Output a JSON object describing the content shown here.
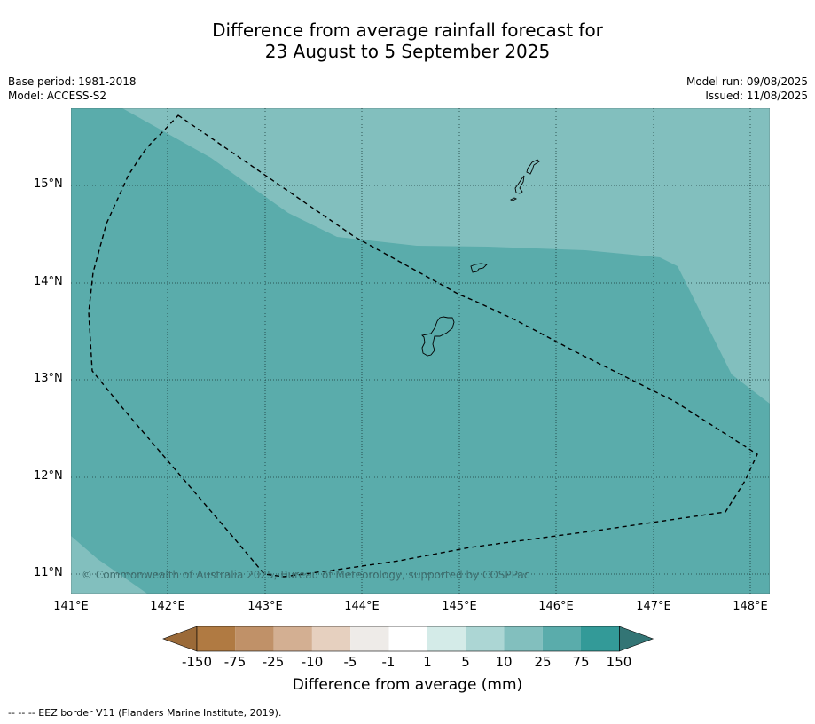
{
  "title_line1": "Difference from average rainfall forecast for",
  "title_line2": "23 August to 5 September 2025",
  "meta": {
    "base_period": "Base period: 1981-2018",
    "model": "Model: ACCESS-S2",
    "model_run": "Model run: 09/08/2025",
    "issued": "Issued: 11/08/2025"
  },
  "lat_labels": [
    "15°N",
    "14°N",
    "13°N",
    "12°N",
    "11°N"
  ],
  "lon_labels": [
    "141°E",
    "142°E",
    "143°E",
    "144°E",
    "145°E",
    "146°E",
    "147°E",
    "148°E"
  ],
  "copyright": "© Commonwealth of Australia 2025, Bureau of Meteorology, supported by COSPPac",
  "colorbar": {
    "title": "Difference from average (mm)",
    "tick_labels": [
      "-150",
      "-75",
      "-25",
      "-10",
      "-5",
      "-1",
      "1",
      "5",
      "10",
      "25",
      "75",
      "150"
    ],
    "colors": [
      "#9b6a38",
      "#b07a42",
      "#c09168",
      "#d3af92",
      "#e6d0bf",
      "#eeebe8",
      "#ffffff",
      "#d4ebe8",
      "#acd6d4",
      "#82bfbe",
      "#5aacab",
      "#339a98",
      "#337575"
    ]
  },
  "map_colors": {
    "category_25_75": "#5aacab",
    "category_10_25": "#82bfbe"
  },
  "footnote": "--  --  -- EEZ border V11 (Flanders Marine Institute, 2019)."
}
